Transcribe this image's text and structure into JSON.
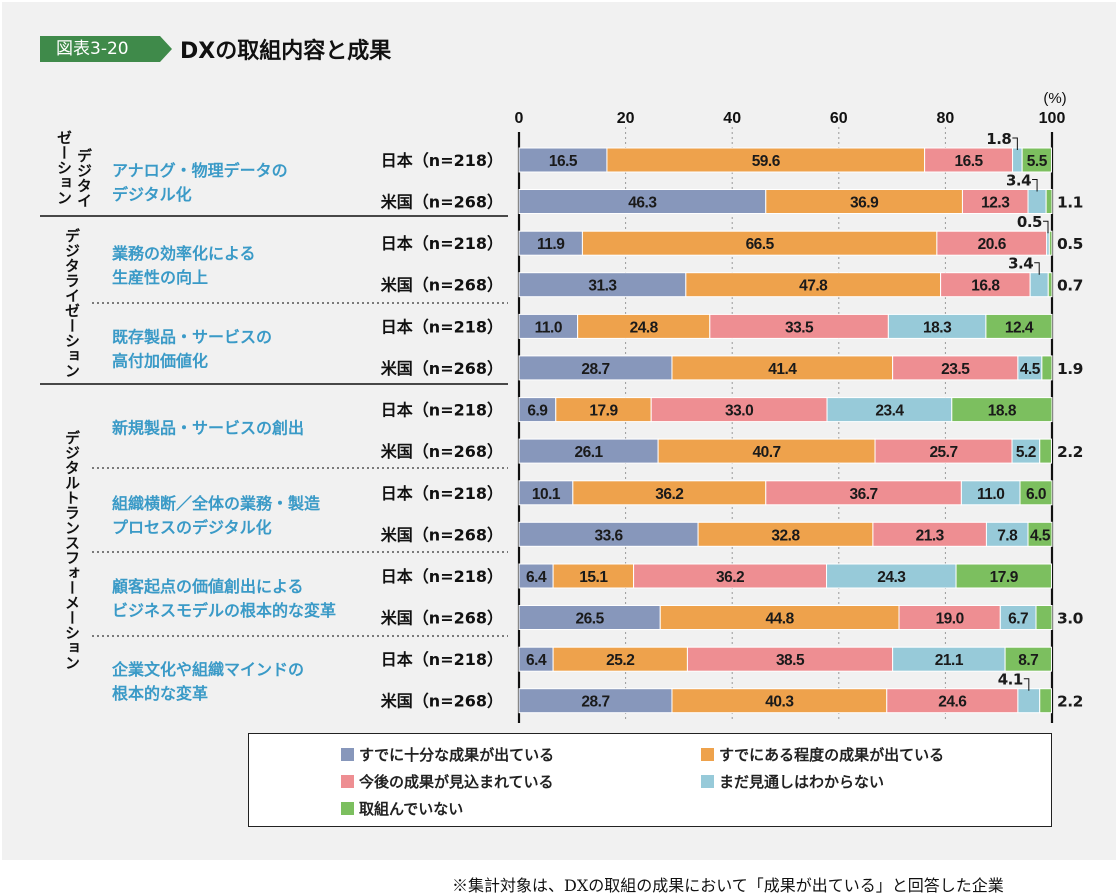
{
  "figure": {
    "tag": "図表3-20",
    "title": "DXの取組内容と成果"
  },
  "footnote": "※集計対象は、DXの取組の成果において「成果が出ている」と回答した企業",
  "colors": {
    "c1": "#8797bb",
    "c2": "#eea24c",
    "c3": "#ee8e92",
    "c4": "#97cad9",
    "c5": "#7cbf5f",
    "label_blue": "#3a9ac7",
    "panel": "#f1f1f1",
    "tag_green": "#3f8a4a"
  },
  "chart_data": {
    "type": "bar",
    "orientation": "horizontal",
    "stacked": true,
    "xlim": [
      0,
      100
    ],
    "x_ticks": [
      "0",
      "20",
      "40",
      "60",
      "80",
      "100"
    ],
    "unit_label": "(%)",
    "series": [
      {
        "name": "すでに十分な成果が出ている",
        "color": "#8797bb"
      },
      {
        "name": "すでにある程度の成果が出ている",
        "color": "#eea24c"
      },
      {
        "name": "今後の成果が見込まれている",
        "color": "#ee8e92"
      },
      {
        "name": "まだ見通しはわからない",
        "color": "#97cad9"
      },
      {
        "name": "取組んでいない",
        "color": "#7cbf5f"
      }
    ],
    "groups": [
      {
        "name": "デジタイゼーション",
        "label_lines": [
          "デジタイ",
          "ゼーション"
        ]
      },
      {
        "name": "デジタライゼーション",
        "label_lines": [
          "デジタライゼーション"
        ]
      },
      {
        "name": "デジタルトランスフォーメーション",
        "label_lines": [
          "デジタルトランスフォーメーション"
        ]
      }
    ],
    "categories": [
      {
        "group": 0,
        "label_lines": [
          "アナログ・物理データの",
          "デジタル化"
        ],
        "rows": [
          {
            "label": "日本（n=218）",
            "values": [
              16.5,
              59.6,
              16.5,
              1.8,
              5.5
            ]
          },
          {
            "label": "米国（n=268）",
            "values": [
              46.3,
              36.9,
              12.3,
              3.4,
              1.1
            ]
          }
        ]
      },
      {
        "group": 1,
        "label_lines": [
          "業務の効率化による",
          "生産性の向上"
        ],
        "rows": [
          {
            "label": "日本（n=218）",
            "values": [
              11.9,
              66.5,
              20.6,
              0.5,
              0.5
            ]
          },
          {
            "label": "米国（n=268）",
            "values": [
              31.3,
              47.8,
              16.8,
              3.4,
              0.7
            ]
          }
        ]
      },
      {
        "group": 1,
        "label_lines": [
          "既存製品・サービスの",
          "高付加価値化"
        ],
        "rows": [
          {
            "label": "日本（n=218）",
            "values": [
              11.0,
              24.8,
              33.5,
              18.3,
              12.4
            ]
          },
          {
            "label": "米国（n=268）",
            "values": [
              28.7,
              41.4,
              23.5,
              4.5,
              1.9
            ]
          }
        ]
      },
      {
        "group": 2,
        "label_lines": [
          "新規製品・サービスの創出"
        ],
        "rows": [
          {
            "label": "日本（n=218）",
            "values": [
              6.9,
              17.9,
              33.0,
              23.4,
              18.8
            ]
          },
          {
            "label": "米国（n=268）",
            "values": [
              26.1,
              40.7,
              25.7,
              5.2,
              2.2
            ]
          }
        ]
      },
      {
        "group": 2,
        "label_lines": [
          "組織横断／全体の業務・製造",
          "プロセスのデジタル化"
        ],
        "rows": [
          {
            "label": "日本（n=218）",
            "values": [
              10.1,
              36.2,
              36.7,
              11.0,
              6.0
            ]
          },
          {
            "label": "米国（n=268）",
            "values": [
              33.6,
              32.8,
              21.3,
              7.8,
              4.5
            ]
          }
        ]
      },
      {
        "group": 2,
        "label_lines": [
          "顧客起点の価値創出による",
          "ビジネスモデルの根本的な変革"
        ],
        "rows": [
          {
            "label": "日本（n=218）",
            "values": [
              6.4,
              15.1,
              36.2,
              24.3,
              17.9
            ]
          },
          {
            "label": "米国（n=268）",
            "values": [
              26.5,
              44.8,
              19.0,
              6.7,
              3.0
            ]
          }
        ]
      },
      {
        "group": 2,
        "label_lines": [
          "企業文化や組織マインドの",
          "根本的な変革"
        ],
        "rows": [
          {
            "label": "日本（n=218）",
            "values": [
              6.4,
              25.2,
              38.5,
              21.1,
              8.7
            ]
          },
          {
            "label": "米国（n=268）",
            "values": [
              28.7,
              40.3,
              24.6,
              4.1,
              2.2
            ]
          }
        ]
      }
    ]
  }
}
